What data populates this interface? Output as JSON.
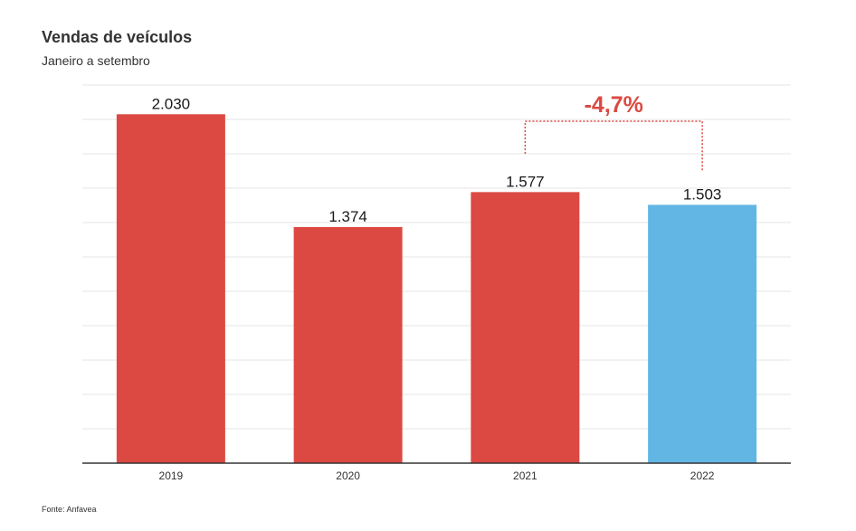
{
  "chart_data": {
    "type": "bar",
    "title": "Vendas de veículos",
    "subtitle": "Janeiro a setembro",
    "categories": [
      "2019",
      "2020",
      "2021",
      "2022"
    ],
    "values": [
      2030,
      1374,
      1577,
      1503
    ],
    "value_labels": [
      "2.030",
      "1.374",
      "1.577",
      "1.503"
    ],
    "bar_colors": [
      "#db4942",
      "#db4942",
      "#db4942",
      "#62b6e4"
    ],
    "ylim": [
      0,
      2200
    ],
    "grid": true,
    "annotation": {
      "text": "-4,7%",
      "from_category": "2021",
      "to_category": "2022",
      "color": "#db4942"
    },
    "source": "Fonte: Anfavea"
  }
}
